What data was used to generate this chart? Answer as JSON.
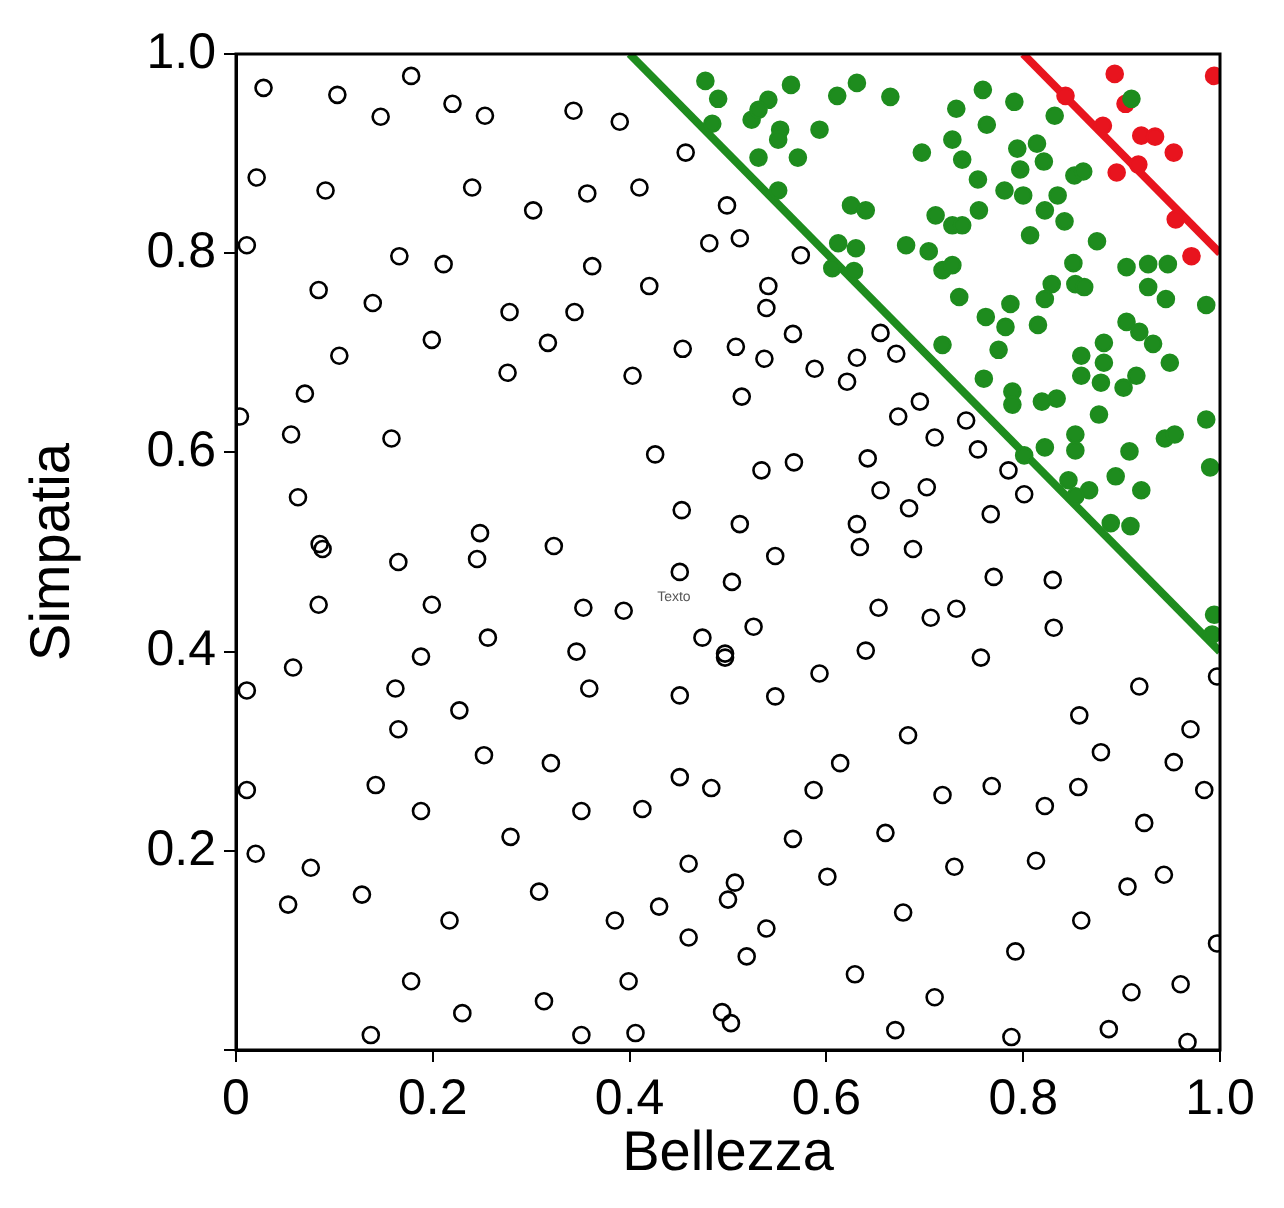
{
  "chart_data": {
    "type": "scatter",
    "xlabel": "Bellezza",
    "ylabel": "Simpatia",
    "xlim": [
      0,
      1
    ],
    "ylim": [
      0,
      1
    ],
    "xticks": [
      0,
      0.2,
      0.4,
      0.6,
      0.8,
      {
        "value": 1,
        "label": "1.0"
      }
    ],
    "yticks": [
      {
        "value": 0,
        "label": null
      },
      0.2,
      0.4,
      0.6,
      0.8,
      {
        "value": 1,
        "label": "1.0"
      }
    ],
    "grid": false,
    "legend": false,
    "marker": "circle",
    "annotations": [
      "Texto"
    ],
    "series": [
      {
        "color": "#000000",
        "x": [
          0.028,
          0.103,
          0.178,
          0.22,
          0.147,
          0.253,
          0.343,
          0.39,
          0.457,
          0.021,
          0.091,
          0.011,
          0.166,
          0.24,
          0.302,
          0.357,
          0.41,
          0.481,
          0.362,
          0.42,
          0.454,
          0.344,
          0.278,
          0.211,
          0.139,
          0.084,
          0.105,
          0.199,
          0.317,
          0.276,
          0.07,
          0.004,
          0.056,
          0.063,
          0.158,
          0.403,
          0.426,
          0.453,
          0.248,
          0.085,
          0.499,
          0.512,
          0.574,
          0.541,
          0.539,
          0.537,
          0.508,
          0.566,
          0.631,
          0.655,
          0.671,
          0.588,
          0.621,
          0.514,
          0.695,
          0.673,
          0.642,
          0.71,
          0.754,
          0.742,
          0.567,
          0.534,
          0.655,
          0.684,
          0.702,
          0.767,
          0.785,
          0.801,
          0.512,
          0.631,
          0.088,
          0.084,
          0.058,
          0.165,
          0.199,
          0.188,
          0.256,
          0.245,
          0.323,
          0.353,
          0.394,
          0.346,
          0.359,
          0.227,
          0.162,
          0.165,
          0.011,
          0.011,
          0.252,
          0.32,
          0.142,
          0.351,
          0.413,
          0.188,
          0.279,
          0.02,
          0.076,
          0.053,
          0.128,
          0.217,
          0.178,
          0.137,
          0.23,
          0.313,
          0.351,
          0.308,
          0.385,
          0.399,
          0.406,
          0.43,
          0.46,
          0.494,
          0.451,
          0.483,
          0.46,
          0.5,
          0.474,
          0.451,
          0.451,
          0.497,
          0.548,
          0.504,
          0.526,
          0.497,
          0.548,
          0.593,
          0.634,
          0.688,
          0.653,
          0.706,
          0.64,
          0.732,
          0.77,
          0.757,
          0.83,
          0.831,
          0.918,
          0.997,
          0.97,
          0.857,
          0.879,
          0.953,
          0.856,
          0.984,
          0.923,
          0.943,
          0.997,
          0.906,
          0.822,
          0.813,
          0.859,
          0.792,
          0.73,
          0.71,
          0.67,
          0.678,
          0.629,
          0.601,
          0.66,
          0.718,
          0.768,
          0.683,
          0.614,
          0.587,
          0.566,
          0.507,
          0.539,
          0.519,
          0.503,
          0.887,
          0.967,
          0.96,
          0.91,
          0.788
        ],
        "values": [
          0.966,
          0.959,
          0.978,
          0.95,
          0.937,
          0.938,
          0.943,
          0.932,
          0.901,
          0.876,
          0.863,
          0.808,
          0.797,
          0.866,
          0.843,
          0.86,
          0.866,
          0.81,
          0.787,
          0.767,
          0.704,
          0.741,
          0.741,
          0.789,
          0.75,
          0.763,
          0.697,
          0.713,
          0.71,
          0.68,
          0.659,
          0.636,
          0.618,
          0.555,
          0.614,
          0.677,
          0.598,
          0.542,
          0.519,
          0.508,
          0.848,
          0.815,
          0.798,
          0.767,
          0.745,
          0.694,
          0.706,
          0.719,
          0.695,
          0.72,
          0.699,
          0.684,
          0.671,
          0.656,
          0.651,
          0.636,
          0.594,
          0.615,
          0.603,
          0.632,
          0.59,
          0.582,
          0.562,
          0.544,
          0.565,
          0.538,
          0.582,
          0.558,
          0.528,
          0.528,
          0.503,
          0.447,
          0.384,
          0.49,
          0.447,
          0.395,
          0.414,
          0.493,
          0.506,
          0.444,
          0.441,
          0.4,
          0.363,
          0.341,
          0.363,
          0.322,
          0.361,
          0.261,
          0.296,
          0.288,
          0.266,
          0.24,
          0.242,
          0.24,
          0.214,
          0.197,
          0.183,
          0.146,
          0.156,
          0.13,
          0.069,
          0.015,
          0.037,
          0.049,
          0.015,
          0.159,
          0.13,
          0.069,
          0.017,
          0.144,
          0.113,
          0.038,
          0.274,
          0.263,
          0.187,
          0.151,
          0.414,
          0.356,
          0.48,
          0.394,
          0.496,
          0.47,
          0.425,
          0.398,
          0.355,
          0.378,
          0.505,
          0.503,
          0.444,
          0.434,
          0.401,
          0.443,
          0.475,
          0.394,
          0.472,
          0.424,
          0.365,
          0.375,
          0.322,
          0.336,
          0.299,
          0.289,
          0.264,
          0.261,
          0.228,
          0.176,
          0.107,
          0.164,
          0.245,
          0.19,
          0.13,
          0.099,
          0.184,
          0.053,
          0.02,
          0.138,
          0.076,
          0.174,
          0.218,
          0.256,
          0.265,
          0.316,
          0.288,
          0.261,
          0.212,
          0.168,
          0.122,
          0.094,
          0.027,
          0.021,
          0.008,
          0.066,
          0.058,
          0.013
        ]
      },
      {
        "color": "#1e8c1e",
        "x": [
          0.49,
          0.564,
          0.541,
          0.524,
          0.531,
          0.553,
          0.551,
          0.531,
          0.571,
          0.593,
          0.611,
          0.631,
          0.665,
          0.551,
          0.625,
          0.64,
          0.612,
          0.63,
          0.606,
          0.628,
          0.681,
          0.704,
          0.711,
          0.728,
          0.738,
          0.697,
          0.728,
          0.738,
          0.732,
          0.759,
          0.791,
          0.763,
          0.754,
          0.755,
          0.781,
          0.794,
          0.814,
          0.821,
          0.797,
          0.8,
          0.822,
          0.835,
          0.807,
          0.842,
          0.832,
          0.852,
          0.861,
          0.875,
          0.851,
          0.853,
          0.862,
          0.829,
          0.822,
          0.787,
          0.735,
          0.718,
          0.728,
          0.762,
          0.782,
          0.815,
          0.775,
          0.718,
          0.76,
          0.789,
          0.789,
          0.819,
          0.834,
          0.859,
          0.882,
          0.859,
          0.882,
          0.877,
          0.905,
          0.927,
          0.947,
          0.927,
          0.945,
          0.905,
          0.918,
          0.932,
          0.949,
          0.915,
          0.902,
          0.879,
          0.986,
          0.853,
          0.853,
          0.822,
          0.801,
          0.846,
          0.894,
          0.908,
          0.944,
          0.954,
          0.92,
          0.986,
          0.99,
          0.889,
          0.909,
          0.867,
          0.853,
          0.91,
          0.994,
          0.992,
          0.477,
          0.484
        ],
        "values": [
          0.955,
          0.969,
          0.954,
          0.934,
          0.944,
          0.924,
          0.914,
          0.896,
          0.896,
          0.924,
          0.958,
          0.971,
          0.957,
          0.863,
          0.848,
          0.843,
          0.81,
          0.805,
          0.785,
          0.782,
          0.808,
          0.802,
          0.838,
          0.828,
          0.828,
          0.901,
          0.914,
          0.894,
          0.945,
          0.964,
          0.952,
          0.929,
          0.874,
          0.843,
          0.863,
          0.905,
          0.91,
          0.892,
          0.884,
          0.858,
          0.843,
          0.858,
          0.818,
          0.832,
          0.938,
          0.878,
          0.882,
          0.812,
          0.79,
          0.769,
          0.766,
          0.769,
          0.754,
          0.749,
          0.756,
          0.783,
          0.788,
          0.736,
          0.726,
          0.728,
          0.703,
          0.708,
          0.674,
          0.661,
          0.648,
          0.651,
          0.654,
          0.697,
          0.71,
          0.677,
          0.69,
          0.638,
          0.786,
          0.789,
          0.789,
          0.766,
          0.754,
          0.731,
          0.721,
          0.709,
          0.69,
          0.677,
          0.665,
          0.67,
          0.748,
          0.618,
          0.602,
          0.605,
          0.597,
          0.572,
          0.576,
          0.601,
          0.614,
          0.618,
          0.562,
          0.633,
          0.585,
          0.529,
          0.526,
          0.562,
          0.556,
          0.955,
          0.437,
          0.417,
          0.973,
          0.93
        ]
      },
      {
        "color": "#e8141e",
        "x": [
          0.893,
          0.994,
          0.843,
          0.904,
          0.881,
          0.92,
          0.934,
          0.953,
          0.917,
          0.895,
          0.955,
          0.971
        ],
        "values": [
          0.98,
          0.978,
          0.958,
          0.95,
          0.928,
          0.918,
          0.917,
          0.901,
          0.889,
          0.881,
          0.834,
          0.797
        ]
      },
      {
        "type": "line",
        "marker": "none",
        "color": "#1e8c1e",
        "x": [
          0.4,
          1.0
        ],
        "values": [
          1.0,
          0.4
        ]
      },
      {
        "type": "line",
        "marker": "none",
        "color": "#e8141e",
        "x": [
          0.8,
          1.0
        ],
        "values": [
          1.0,
          0.8
        ]
      }
    ]
  }
}
